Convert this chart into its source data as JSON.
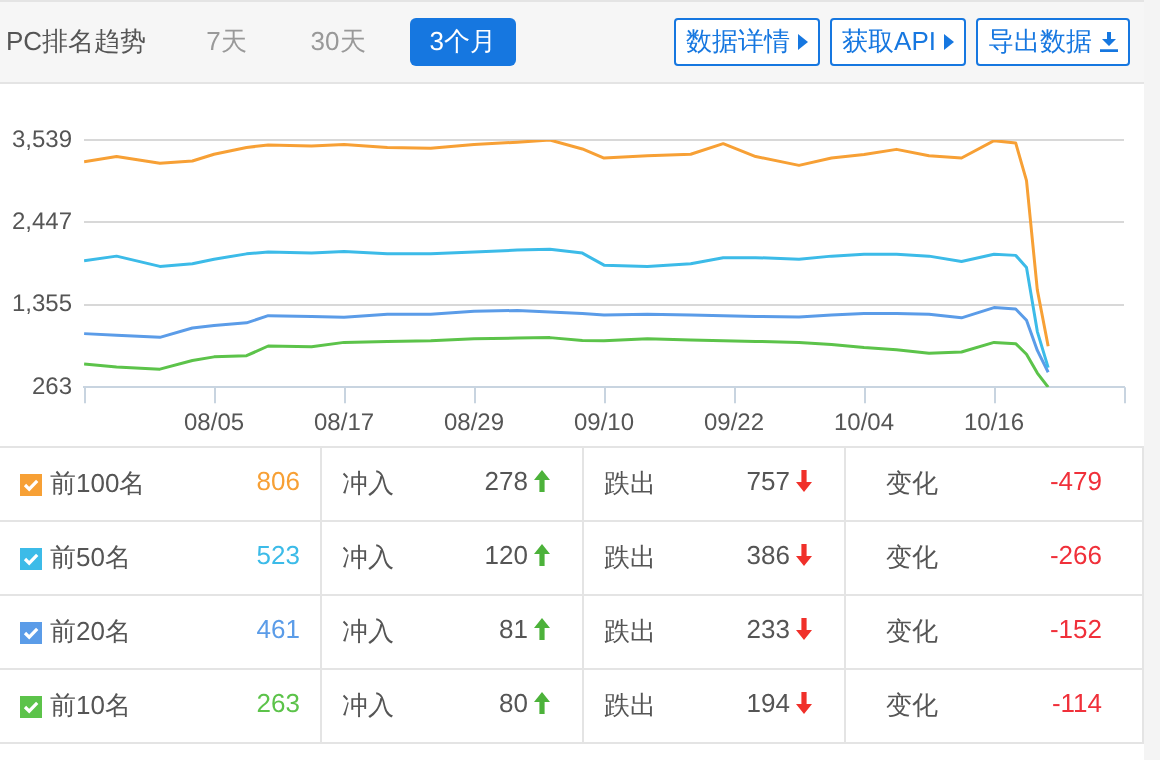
{
  "chart_data": {
    "type": "line",
    "title": "PC排名趋势",
    "x": [
      "--07-24",
      "--07-27",
      "--07-31",
      "--08-03",
      "--08-05",
      "--08-08",
      "--08-10",
      "--08-14",
      "--08-17",
      "--08-21",
      "--08-25",
      "--08-29",
      "--09-02",
      "--09-05",
      "--09-08",
      "--09-10",
      "--09-14",
      "--09-18",
      "--09-21",
      "--09-24",
      "--09-28",
      "--10-01",
      "--10-04",
      "--10-07",
      "--10-10",
      "--10-13",
      "--10-16",
      "--10-18",
      "--10-19",
      "--10-20",
      "--10-21"
    ],
    "series": [
      {
        "name": "前100名",
        "color": "#f7a035",
        "values": [
          3252,
          3320,
          3232,
          3260,
          3350,
          3440,
          3473,
          3460,
          3480,
          3440,
          3430,
          3480,
          3510,
          3539,
          3420,
          3300,
          3330,
          3350,
          3490,
          3320,
          3203,
          3300,
          3347,
          3415,
          3330,
          3301,
          3530,
          3500,
          3000,
          1550,
          806
        ]
      },
      {
        "name": "前50名",
        "color": "#3cbbe8",
        "values": [
          1938,
          2000,
          1864,
          1900,
          1959,
          2030,
          2054,
          2040,
          2060,
          2030,
          2030,
          2054,
          2080,
          2092,
          2040,
          1880,
          1864,
          1900,
          1979,
          1980,
          1959,
          2000,
          2025,
          2025,
          2000,
          1930,
          2025,
          2010,
          1850,
          1000,
          523
        ]
      },
      {
        "name": "前20名",
        "color": "#5b9ce8",
        "values": [
          973,
          950,
          924,
          1047,
          1080,
          1116,
          1211,
          1200,
          1190,
          1230,
          1230,
          1269,
          1280,
          1260,
          1240,
          1220,
          1230,
          1220,
          1211,
          1200,
          1192,
          1220,
          1240,
          1240,
          1230,
          1182,
          1318,
          1300,
          1150,
          750,
          461
        ]
      },
      {
        "name": "前10名",
        "color": "#5cc34a",
        "values": [
          570,
          530,
          502,
          617,
          665,
          680,
          809,
          800,
          857,
          870,
          880,
          904,
          915,
          920,
          883,
          880,
          904,
          890,
          880,
          870,
          857,
          830,
          789,
          760,
          714,
          730,
          857,
          840,
          700,
          450,
          263
        ]
      }
    ],
    "xlim": [
      "--07-24",
      "--10-28"
    ],
    "xticks": [
      {
        "value": "--07-24",
        "label": null
      },
      {
        "value": "--08-05",
        "label": "08/05"
      },
      {
        "value": "--08-17",
        "label": "08/17"
      },
      {
        "value": "--08-29",
        "label": "08/29"
      },
      {
        "value": "--09-10",
        "label": "09/10"
      },
      {
        "value": "--09-22",
        "label": "09/22"
      },
      {
        "value": "--10-04",
        "label": "10/04"
      },
      {
        "value": "--10-16",
        "label": "10/16"
      },
      {
        "value": "--10-28",
        "label": null
      }
    ],
    "ylim": [
      263,
      3539
    ],
    "yticks": [
      263,
      {
        "value": 1355,
        "label": "1,355"
      },
      {
        "value": 2447,
        "label": "2,447"
      },
      {
        "value": 3539,
        "label": "3,539"
      }
    ],
    "grid": "y",
    "legend": "bottom",
    "marker": "none",
    "line_style": "solid",
    "annotations": [
      "7天",
      "30天",
      "3个月",
      "数据详情",
      "获取API",
      "导出数据",
      "806",
      "冲入",
      "278",
      "跌出",
      "757",
      "变化",
      "-479",
      "523",
      "冲入",
      "120",
      "跌出",
      "386",
      "变化",
      "-266",
      "461",
      "冲入",
      "81",
      "跌出",
      "233",
      "变化",
      "-152",
      "263",
      "冲入",
      "80",
      "跌出",
      "194",
      "变化",
      "-114"
    ]
  }
}
